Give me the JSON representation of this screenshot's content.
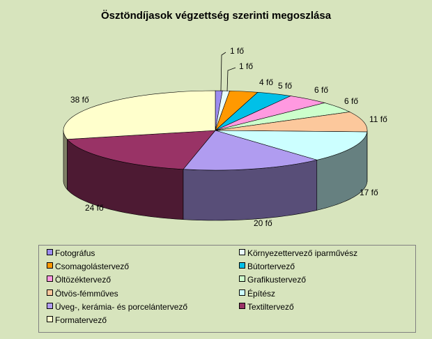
{
  "chart_data": {
    "type": "pie",
    "title": "Ösztöndíjasok végzettség szerinti megoszlása",
    "unit": "fő",
    "slices": [
      {
        "name": "Fotográfus",
        "value": 1,
        "label": "1 fő",
        "color": "#9c8cf0"
      },
      {
        "name": "Környezettervező iparművész",
        "value": 1,
        "label": "1 fő",
        "color": "#e8fcfa"
      },
      {
        "name": "Csomagolástervező",
        "value": 4,
        "label": "4 fő",
        "color": "#ff9900"
      },
      {
        "name": "Bútortervező",
        "value": 5,
        "label": "5 fő",
        "color": "#00c0e8"
      },
      {
        "name": "Öltözéktervező",
        "value": 6,
        "label": "6 fő",
        "color": "#ff99e0"
      },
      {
        "name": "Grafikustervező",
        "value": 6,
        "label": "6 fő",
        "color": "#ccffcc"
      },
      {
        "name": "Ötvös-fémműves",
        "value": 11,
        "label": "11 fő",
        "color": "#fcc89c"
      },
      {
        "name": "Építész",
        "value": 17,
        "label": "17 fő",
        "color": "#ccffff"
      },
      {
        "name": "Üveg-, kerámia- és porcelántervező",
        "value": 20,
        "label": "20 fő",
        "color": "#b09cf0"
      },
      {
        "name": "Textiltervező",
        "value": 24,
        "label": "24 fő",
        "color": "#993366"
      },
      {
        "name": "Formatervező",
        "value": 38,
        "label": "38 fő",
        "color": "#ffffcc"
      }
    ],
    "legend_position": "bottom",
    "legend_columns": 2
  }
}
